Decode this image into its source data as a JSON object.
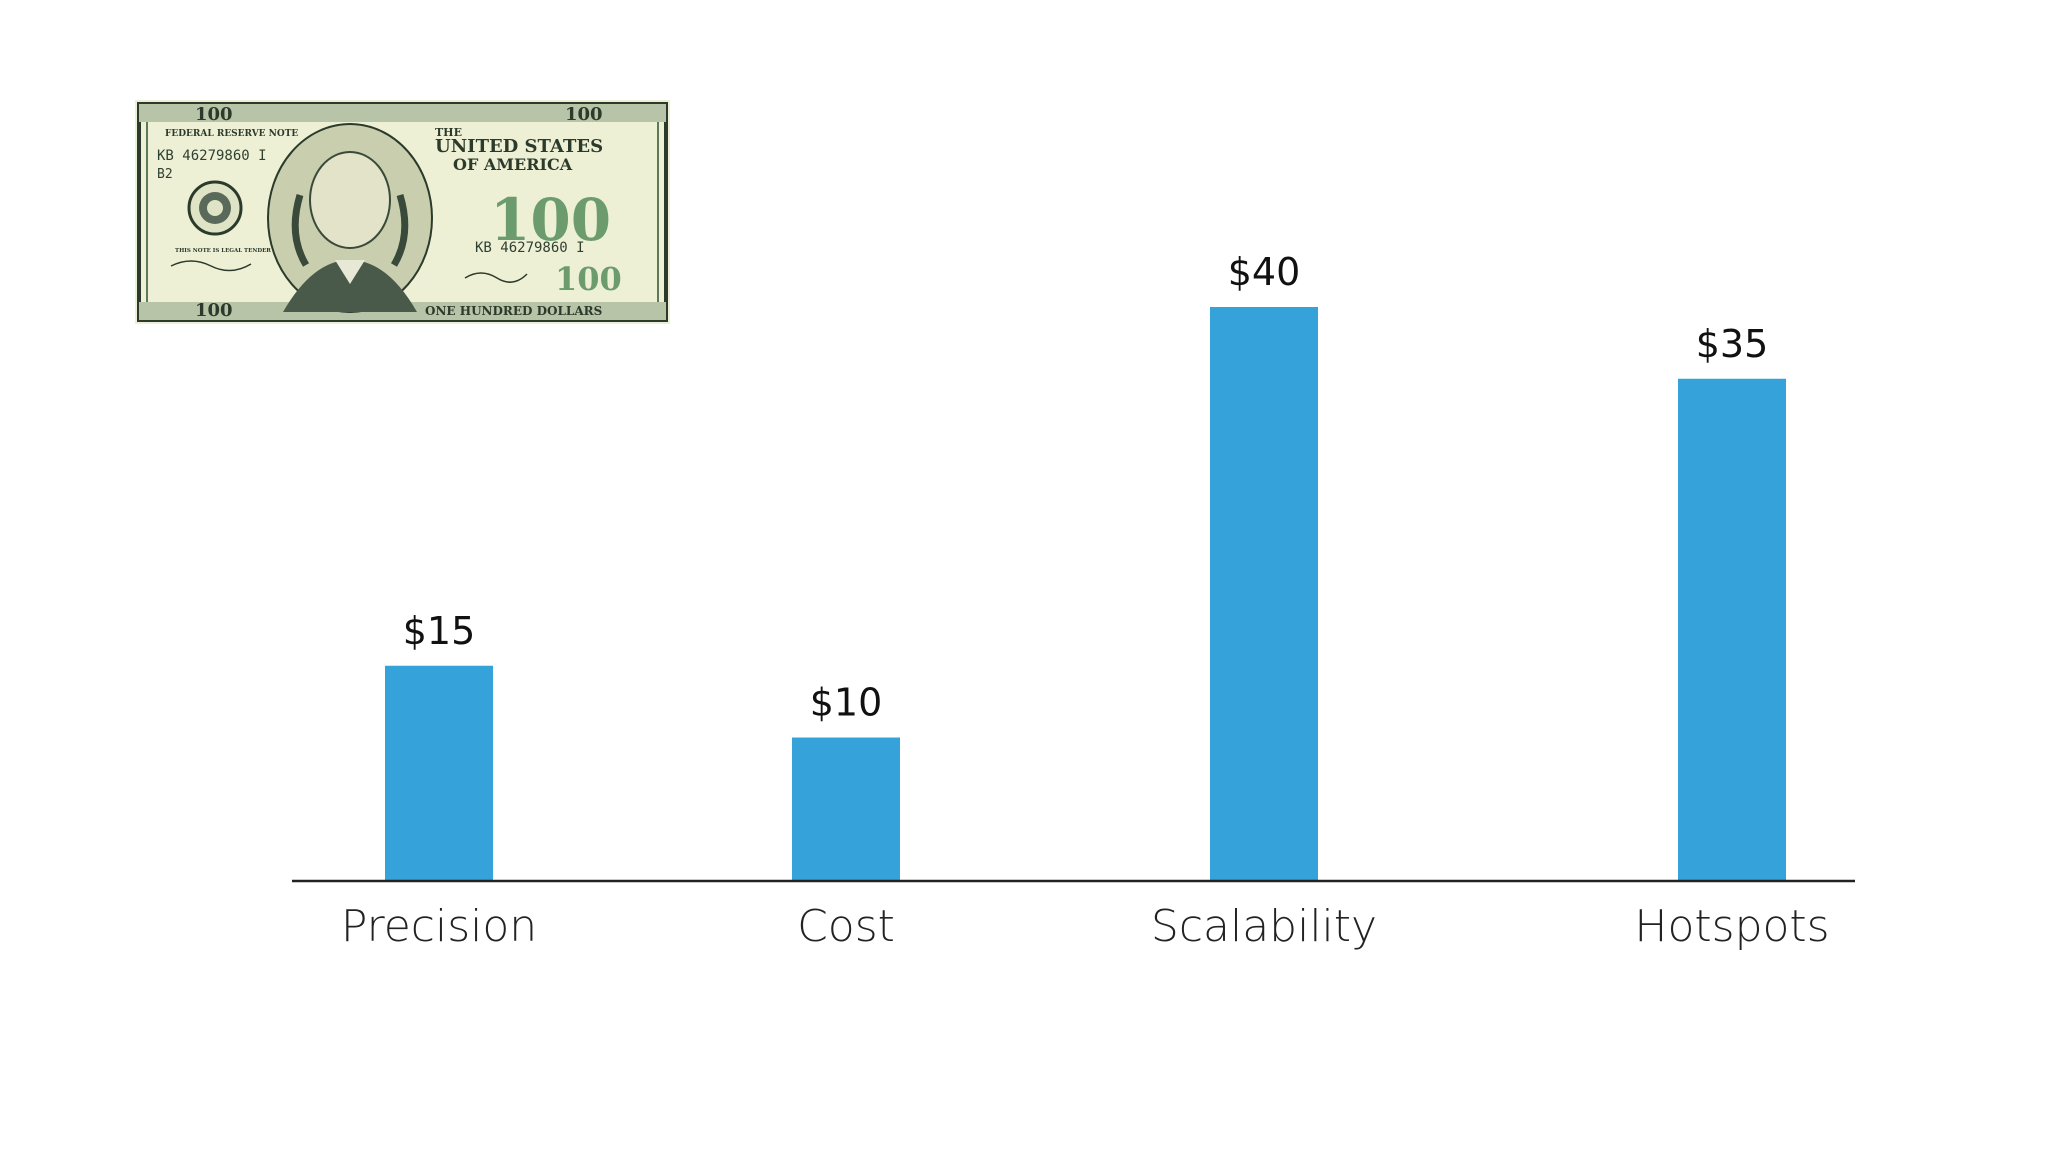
{
  "bill": {
    "denomination": "100",
    "header_note": "FEDERAL RESERVE NOTE",
    "country_line1": "THE",
    "country_line2": "UNITED STATES",
    "country_line3": "OF AMERICA",
    "serial": "KB 46279860 I",
    "serial_right": "KB 46279860 I",
    "district": "B2",
    "footer": "ONE HUNDRED DOLLARS",
    "legal_tender": "THIS NOTE IS LEGAL TENDER FOR ALL DEBTS, PUBLIC AND PRIVATE",
    "colors": {
      "paper": "#eef0d6",
      "ink": "#2b3a2a",
      "green": "#5a8a5c"
    }
  },
  "chart_data": {
    "type": "bar",
    "categories": [
      "Precision",
      "Cost",
      "Scalability",
      "Hotspots"
    ],
    "values": [
      15,
      10,
      40,
      35
    ],
    "value_labels": [
      "$15",
      "$10",
      "$40",
      "$35"
    ],
    "title": "",
    "xlabel": "",
    "ylabel": "",
    "ylim": [
      0,
      50
    ],
    "grid": false,
    "legend": "none",
    "bar_color": "#35a3da",
    "axis_color": "#222222"
  }
}
